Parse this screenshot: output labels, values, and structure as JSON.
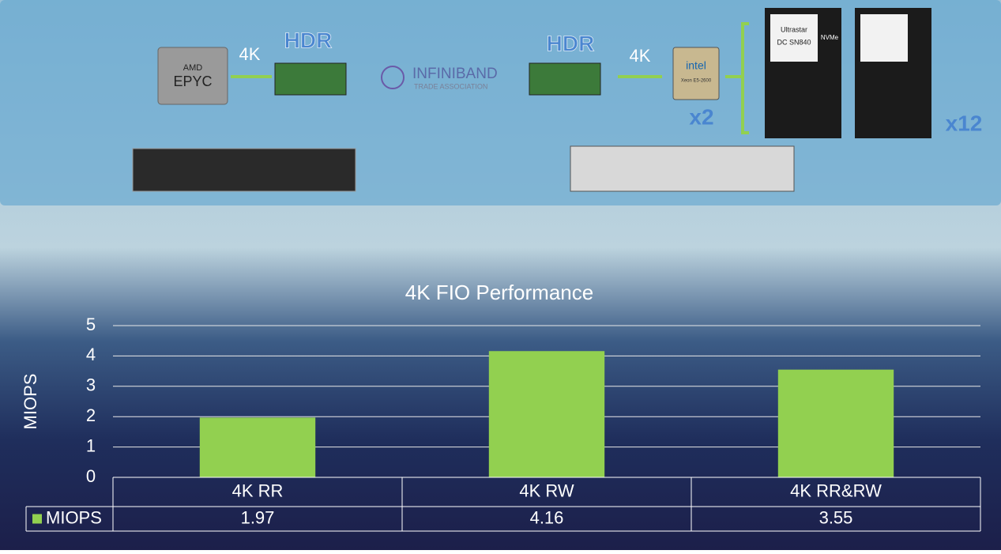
{
  "diagram": {
    "left_link": "4K",
    "left_card": "HDR",
    "right_card": "HDR",
    "right_link": "4K",
    "cpu_count": "x2",
    "ssd_count": "x12",
    "amd_brand": "AMD",
    "amd_chip": "EPYC",
    "intel_brand": "intel",
    "intel_chip": "Xeon E5-2600",
    "ib_name": "INFINIBAND",
    "ib_sub": "TRADE ASSOCIATION",
    "ssd_brand": "Ultrastar",
    "ssd_model": "DC SN840",
    "ssd_iface": "NVMe"
  },
  "chart_data": {
    "type": "bar",
    "title": "4K FIO Performance",
    "y_label": "MIOPS",
    "categories": [
      "4K RR",
      "4K RW",
      "4K RR&RW"
    ],
    "series": [
      {
        "name": "MIOPS",
        "color": "#92d050",
        "values": [
          1.97,
          4.16,
          3.55
        ]
      }
    ],
    "ylim": [
      0,
      5
    ],
    "yticks": [
      0,
      1,
      2,
      3,
      4,
      5
    ],
    "grid": true,
    "data_table": true
  }
}
